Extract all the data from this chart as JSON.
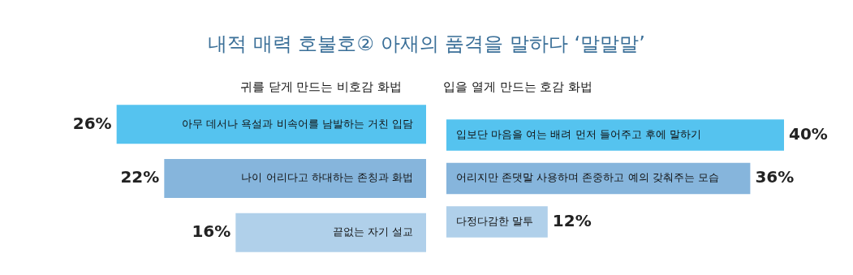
{
  "chart_data": [
    {
      "type": "bar",
      "orientation": "horizontal",
      "title": "내적 매력 호불호② 아재의 품격을 말하다 ‘말말말’",
      "subtitle": "귀를 닫게 만드는 비호감 화법",
      "categories": [
        "아무 데서나 욕설과 비속어를 남발하는 거친 입담",
        "나이 어리다고 하대하는 존칭과 화법",
        "끝없는 자기 설교"
      ],
      "values": [
        26,
        22,
        16
      ],
      "colors": [
        "#55c3ef",
        "#86b5dc",
        "#b0d0ea"
      ],
      "value_labels": [
        "26%",
        "22%",
        "16%"
      ],
      "grid": false,
      "legend": false,
      "tick_labels": "y"
    },
    {
      "type": "bar",
      "orientation": "horizontal",
      "subtitle": "입을 열게 만드는 호감 화법",
      "categories": [
        "입보단 마음을 여는 배려 먼저 들어주고 후에 말하기",
        "어리지만 존댓말 사용하며 존중하고 예의 갖춰주는 모습",
        "다정다감한 말투"
      ],
      "values": [
        40,
        36,
        12
      ],
      "colors": [
        "#55c3ef",
        "#86b5dc",
        "#b0d0ea"
      ],
      "value_labels": [
        "40%",
        "36%",
        "12%"
      ],
      "grid": false,
      "legend": false,
      "tick_labels": "y"
    }
  ]
}
